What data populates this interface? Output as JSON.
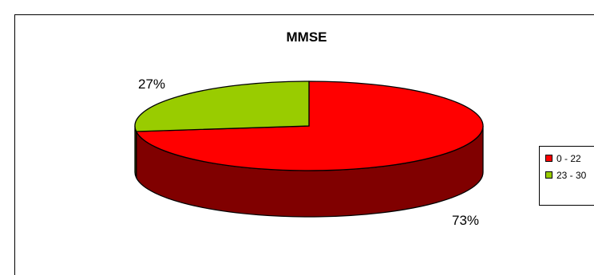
{
  "chart_data": {
    "type": "pie",
    "title": "MMSE",
    "categories": [
      "0 - 22",
      "23 - 30"
    ],
    "values": [
      73,
      27
    ],
    "data_labels": [
      "73%",
      "27%"
    ],
    "colors": [
      "#ff0000",
      "#99cc00"
    ],
    "side_colors": [
      "#800000",
      "#4d6600"
    ],
    "legend": {
      "placement": "right",
      "entries": [
        "0 - 22",
        "23 - 30"
      ]
    },
    "style": "3d-pie"
  }
}
